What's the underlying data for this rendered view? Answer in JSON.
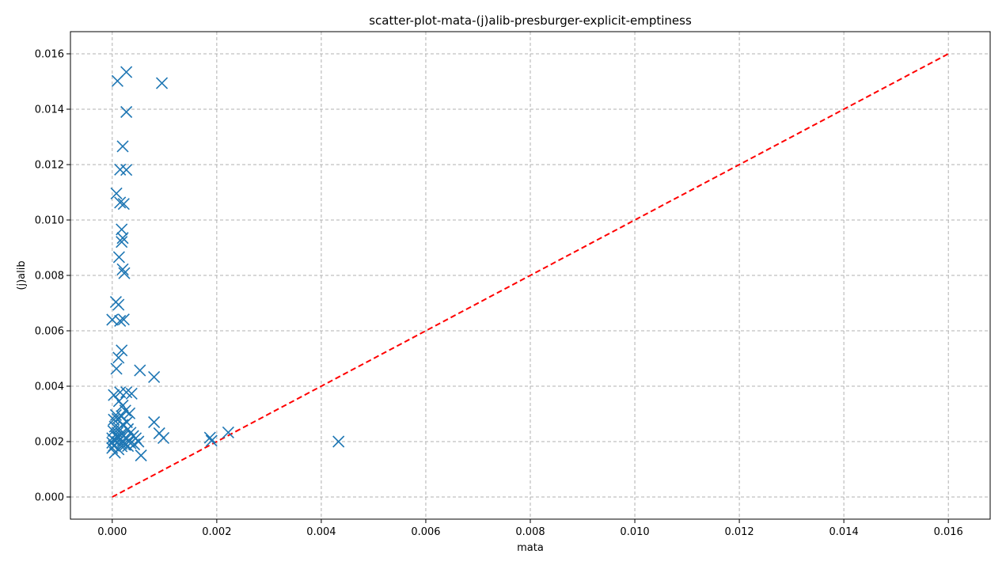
{
  "chart_data": {
    "type": "scatter",
    "title": "scatter-plot-mata-(j)alib-presburger-explicit-emptiness",
    "xlabel": "mata",
    "ylabel": "(j)alib",
    "xlim": [
      -0.0008,
      0.0168
    ],
    "ylim": [
      -0.0008,
      0.0168
    ],
    "xticks": [
      0.0,
      0.002,
      0.004,
      0.006,
      0.008,
      0.01,
      0.012,
      0.014,
      0.016
    ],
    "yticks": [
      0.0,
      0.002,
      0.004,
      0.006,
      0.008,
      0.01,
      0.012,
      0.014,
      0.016
    ],
    "xtick_labels": [
      "0.000",
      "0.002",
      "0.004",
      "0.006",
      "0.008",
      "0.010",
      "0.012",
      "0.014",
      "0.016"
    ],
    "ytick_labels": [
      "0.000",
      "0.002",
      "0.004",
      "0.006",
      "0.008",
      "0.010",
      "0.012",
      "0.014",
      "0.016"
    ],
    "grid": true,
    "marker": "x",
    "marker_color": "#1f77b4",
    "diagonal": {
      "x": [
        0.0,
        0.016
      ],
      "y": [
        0.0,
        0.016
      ],
      "style": "dashed",
      "color": "#ff0000"
    },
    "x": [
      0.0001,
      0.00027,
      0.00095,
      0.00027,
      0.0002,
      0.00015,
      0.00027,
      8e-05,
      0.00015,
      0.00022,
      0.00018,
      0.0002,
      0.00018,
      0.00013,
      0.0002,
      0.00023,
      7e-05,
      0.00012,
      0.0,
      0.00015,
      0.00022,
      0.00018,
      0.00012,
      8e-05,
      0.00053,
      0.0008,
      3e-05,
      0.00015,
      0.00027,
      0.00037,
      0.00013,
      0.0002,
      0.00025,
      0.00033,
      7e-05,
      3e-05,
      0.00018,
      0.0001,
      0.00028,
      0.0002,
      5e-05,
      0.00013,
      0.0003,
      2e-05,
      0.00035,
      0.0001,
      0.00017,
      0.00022,
      0.0004,
      8e-05,
      0.00012,
      0.0,
      0.00045,
      0.00027,
      0.00015,
      3e-05,
      0.0002,
      0.00032,
      0.0005,
      0.0001,
      0.0,
      0.00035,
      0.00018,
      0.00025,
      3e-05,
      0.00042,
      0.00055,
      0.0008,
      0.0009,
      0.00098,
      0.00187,
      0.0019,
      0.00222,
      0.00433,
      0.0,
      5e-05,
      0.00012,
      0.00018,
      0.0003
    ],
    "y": [
      0.01502,
      0.01534,
      0.01494,
      0.0139,
      0.01266,
      0.01182,
      0.01181,
      0.01096,
      0.01063,
      0.01058,
      0.00966,
      0.00935,
      0.00921,
      0.00866,
      0.00822,
      0.00808,
      0.00704,
      0.00694,
      0.0064,
      0.00636,
      0.00641,
      0.00529,
      0.00503,
      0.00463,
      0.00457,
      0.00433,
      0.00368,
      0.00378,
      0.00378,
      0.00373,
      0.00346,
      0.0033,
      0.00312,
      0.00302,
      0.00296,
      0.00279,
      0.00292,
      0.00282,
      0.0027,
      0.0026,
      0.00254,
      0.00248,
      0.00245,
      0.00238,
      0.00232,
      0.00232,
      0.00228,
      0.00222,
      0.0022,
      0.00218,
      0.00214,
      0.00212,
      0.00212,
      0.0021,
      0.00208,
      0.00206,
      0.00203,
      0.002,
      0.002,
      0.00198,
      0.00196,
      0.00194,
      0.00192,
      0.00188,
      0.00185,
      0.0019,
      0.0015,
      0.0027,
      0.0023,
      0.00213,
      0.00214,
      0.00203,
      0.00233,
      0.002,
      0.00177,
      0.0016,
      0.00172,
      0.00183,
      0.00184
    ]
  }
}
